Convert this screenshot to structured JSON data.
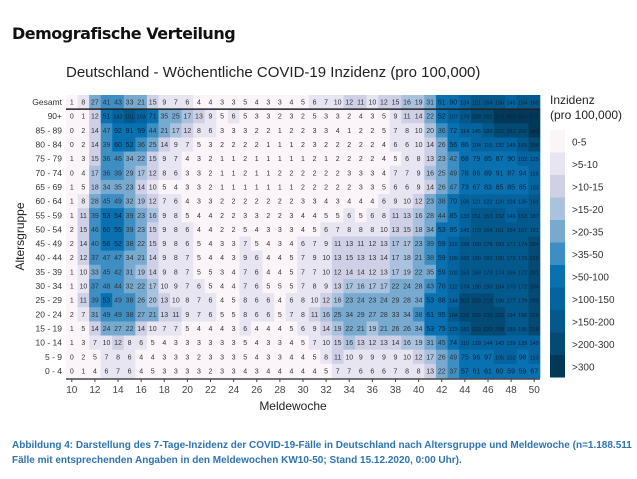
{
  "heading": "Demografische Verteilung",
  "caption": "Abbildung 4: Darstellung des 7-Tage-Inzidenz der COVID-19-Fälle in Deutschland nach Altersgruppe und Meldewoche (n=1.188.511 Fälle mit entsprechenden Angaben in den Meldewochen KW10-50; Stand 15.12.2020, 0:00 Uhr).",
  "chart_data": {
    "type": "heatmap",
    "title": "Deutschland - Wöchentliche COVID-19 Inzidenz (pro 100,000)",
    "xlabel": "Meldewoche",
    "ylabel": "Altersgruppe",
    "x": [
      10,
      11,
      12,
      13,
      14,
      15,
      16,
      17,
      18,
      19,
      20,
      21,
      22,
      23,
      24,
      25,
      26,
      27,
      28,
      29,
      30,
      31,
      32,
      33,
      34,
      35,
      36,
      37,
      38,
      39,
      40,
      41,
      42,
      43,
      44,
      45,
      46,
      47,
      48,
      49,
      50
    ],
    "xticks": [
      "10",
      "12",
      "14",
      "16",
      "18",
      "20",
      "22",
      "24",
      "26",
      "28",
      "30",
      "32",
      "34",
      "36",
      "38",
      "40",
      "42",
      "44",
      "46",
      "48",
      "50"
    ],
    "rows": [
      "Gesamt",
      "90+",
      "85 - 89",
      "80 - 84",
      "75 - 79",
      "70 - 74",
      "65 - 69",
      "60 - 64",
      "55 - 59",
      "50 - 54",
      "45 - 49",
      "40 - 44",
      "35 - 39",
      "30 - 34",
      "25 - 29",
      "20 - 24",
      "15 - 19",
      "10 - 14",
      "5 - 9",
      "0 - 4"
    ],
    "values": [
      [
        1,
        8,
        27,
        41,
        43,
        33,
        21,
        15,
        9,
        7,
        6,
        4,
        4,
        3,
        3,
        5,
        4,
        3,
        3,
        4,
        5,
        6,
        7,
        10,
        12,
        11,
        10,
        12,
        15,
        16,
        19,
        31,
        51,
        90,
        134,
        151,
        154,
        156,
        145,
        154,
        160
      ],
      [
        0,
        1,
        12,
        51,
        142,
        151,
        103,
        71,
        35,
        25,
        17,
        13,
        9,
        5,
        6,
        5,
        3,
        3,
        2,
        3,
        2,
        5,
        3,
        3,
        2,
        4,
        3,
        5,
        9,
        11,
        14,
        22,
        52,
        107,
        179,
        209,
        281,
        372,
        420,
        503,
        571
      ],
      [
        0,
        2,
        14,
        47,
        92,
        91,
        59,
        44,
        21,
        17,
        12,
        8,
        6,
        3,
        3,
        3,
        2,
        2,
        1,
        2,
        2,
        3,
        3,
        4,
        1,
        2,
        2,
        5,
        7,
        8,
        10,
        20,
        36,
        72,
        114,
        145,
        180,
        215,
        261,
        292,
        345
      ],
      [
        0,
        2,
        14,
        39,
        60,
        52,
        36,
        25,
        14,
        9,
        7,
        5,
        3,
        2,
        2,
        2,
        2,
        1,
        1,
        1,
        2,
        3,
        2,
        2,
        2,
        2,
        2,
        4,
        6,
        6,
        10,
        14,
        26,
        56,
        86,
        104,
        115,
        132,
        145,
        165,
        206
      ],
      [
        1,
        3,
        15,
        36,
        46,
        34,
        22,
        15,
        9,
        7,
        4,
        3,
        2,
        1,
        1,
        2,
        1,
        1,
        1,
        1,
        1,
        2,
        1,
        2,
        2,
        2,
        2,
        4,
        5,
        6,
        8,
        13,
        23,
        42,
        68,
        79,
        85,
        87,
        90,
        102,
        125
      ],
      [
        0,
        4,
        17,
        36,
        39,
        29,
        17,
        12,
        8,
        6,
        3,
        3,
        2,
        1,
        1,
        2,
        1,
        1,
        2,
        2,
        2,
        2,
        2,
        2,
        3,
        3,
        3,
        4,
        7,
        7,
        9,
        16,
        25,
        49,
        78,
        86,
        89,
        91,
        87,
        94,
        116
      ],
      [
        1,
        5,
        18,
        34,
        35,
        23,
        14,
        10,
        5,
        4,
        3,
        3,
        2,
        1,
        1,
        1,
        1,
        1,
        1,
        1,
        2,
        2,
        2,
        2,
        2,
        3,
        3,
        5,
        6,
        6,
        9,
        14,
        26,
        47,
        73,
        67,
        83,
        85,
        85,
        85,
        103
      ],
      [
        1,
        8,
        28,
        45,
        49,
        32,
        19,
        12,
        7,
        6,
        4,
        3,
        3,
        2,
        2,
        2,
        2,
        2,
        2,
        2,
        3,
        3,
        4,
        3,
        4,
        4,
        4,
        6,
        9,
        10,
        12,
        23,
        38,
        70,
        106,
        121,
        122,
        129,
        124,
        135,
        161
      ],
      [
        1,
        11,
        39,
        53,
        54,
        39,
        23,
        16,
        9,
        8,
        5,
        4,
        4,
        2,
        2,
        3,
        3,
        2,
        2,
        3,
        4,
        4,
        5,
        5,
        6,
        5,
        6,
        8,
        11,
        13,
        16,
        28,
        44,
        85,
        133,
        151,
        153,
        152,
        146,
        153,
        187
      ],
      [
        2,
        15,
        46,
        60,
        55,
        39,
        23,
        15,
        9,
        8,
        6,
        4,
        4,
        2,
        2,
        5,
        4,
        3,
        3,
        3,
        4,
        5,
        6,
        7,
        8,
        8,
        8,
        10,
        13,
        15,
        18,
        34,
        53,
        95,
        145,
        163,
        164,
        161,
        154,
        157,
        191
      ],
      [
        2,
        14,
        40,
        56,
        52,
        38,
        22,
        15,
        9,
        8,
        6,
        5,
        4,
        3,
        3,
        7,
        5,
        4,
        3,
        4,
        6,
        7,
        9,
        11,
        13,
        11,
        12,
        13,
        17,
        17,
        23,
        39,
        59,
        110,
        159,
        180,
        178,
        183,
        171,
        174,
        204
      ],
      [
        2,
        12,
        37,
        47,
        47,
        34,
        21,
        14,
        9,
        8,
        7,
        5,
        4,
        4,
        3,
        9,
        6,
        4,
        4,
        5,
        7,
        9,
        10,
        13,
        15,
        13,
        13,
        14,
        17,
        18,
        21,
        38,
        59,
        109,
        160,
        180,
        183,
        180,
        179,
        179,
        215
      ],
      [
        1,
        10,
        33,
        45,
        42,
        31,
        19,
        14,
        9,
        8,
        7,
        5,
        5,
        3,
        4,
        7,
        6,
        4,
        4,
        5,
        7,
        7,
        10,
        12,
        14,
        14,
        12,
        13,
        17,
        19,
        22,
        35,
        59,
        102,
        153,
        169,
        173,
        174,
        165,
        172,
        201
      ],
      [
        1,
        10,
        37,
        48,
        44,
        32,
        22,
        17,
        10,
        9,
        7,
        6,
        5,
        4,
        4,
        7,
        6,
        5,
        5,
        5,
        7,
        8,
        9,
        13,
        17,
        16,
        17,
        17,
        22,
        24,
        28,
        43,
        70,
        122,
        174,
        190,
        190,
        184,
        170,
        172,
        204
      ],
      [
        1,
        11,
        39,
        53,
        49,
        38,
        26,
        20,
        13,
        10,
        8,
        7,
        6,
        4,
        5,
        8,
        6,
        6,
        4,
        6,
        8,
        10,
        12,
        16,
        23,
        24,
        23,
        24,
        29,
        28,
        34,
        53,
        88,
        144,
        203,
        220,
        219,
        196,
        177,
        179,
        209
      ],
      [
        2,
        7,
        31,
        49,
        49,
        38,
        27,
        21,
        13,
        11,
        9,
        7,
        6,
        5,
        5,
        8,
        6,
        6,
        5,
        7,
        8,
        11,
        16,
        25,
        34,
        29,
        27,
        28,
        33,
        34,
        38,
        61,
        95,
        164,
        226,
        255,
        239,
        222,
        194,
        198,
        228
      ],
      [
        1,
        5,
        14,
        24,
        27,
        22,
        14,
        10,
        7,
        7,
        5,
        4,
        4,
        4,
        3,
        6,
        4,
        4,
        4,
        5,
        6,
        9,
        14,
        19,
        22,
        21,
        19,
        21,
        26,
        26,
        34,
        53,
        75,
        123,
        182,
        213,
        220,
        208,
        189,
        195,
        218
      ],
      [
        1,
        3,
        7,
        10,
        12,
        8,
        6,
        5,
        4,
        3,
        3,
        3,
        3,
        3,
        3,
        5,
        4,
        3,
        3,
        4,
        5,
        7,
        10,
        15,
        16,
        13,
        12,
        13,
        14,
        16,
        19,
        31,
        45,
        74,
        110,
        129,
        144,
        143,
        139,
        139,
        149
      ],
      [
        0,
        2,
        5,
        7,
        8,
        6,
        4,
        4,
        3,
        3,
        3,
        2,
        3,
        3,
        3,
        5,
        4,
        3,
        3,
        4,
        4,
        5,
        8,
        11,
        10,
        9,
        9,
        9,
        9,
        10,
        12,
        17,
        26,
        49,
        75,
        96,
        97,
        105,
        102,
        98,
        110
      ],
      [
        0,
        1,
        4,
        6,
        7,
        6,
        4,
        5,
        3,
        3,
        3,
        3,
        2,
        3,
        3,
        4,
        3,
        4,
        4,
        4,
        4,
        4,
        5,
        7,
        7,
        6,
        6,
        6,
        7,
        8,
        8,
        13,
        22,
        37,
        57,
        61,
        61,
        60,
        59,
        59,
        67
      ]
    ],
    "legend": {
      "title": [
        "Inzidenz",
        "(pro 100,000)"
      ],
      "bins": [
        {
          "label": "0-5",
          "max": 5,
          "color": "#fbf4f9"
        },
        {
          "label": ">5-10",
          "max": 10,
          "color": "#e7e5f1"
        },
        {
          "label": ">10-15",
          "max": 15,
          "color": "#cfd0e6"
        },
        {
          "label": ">15-20",
          "max": 20,
          "color": "#abc2df"
        },
        {
          "label": ">20-35",
          "max": 35,
          "color": "#78aad0"
        },
        {
          "label": ">35-50",
          "max": 50,
          "color": "#3d8fc3"
        },
        {
          "label": ">50-100",
          "max": 100,
          "color": "#0a71b1"
        },
        {
          "label": ">100-150",
          "max": 150,
          "color": "#05649f"
        },
        {
          "label": ">150-200",
          "max": 200,
          "color": "#04598c"
        },
        {
          "label": ">200-300",
          "max": 300,
          "color": "#034a74"
        },
        {
          "label": ">300",
          "max": 100000,
          "color": "#023858"
        }
      ],
      "placement": "right"
    }
  }
}
